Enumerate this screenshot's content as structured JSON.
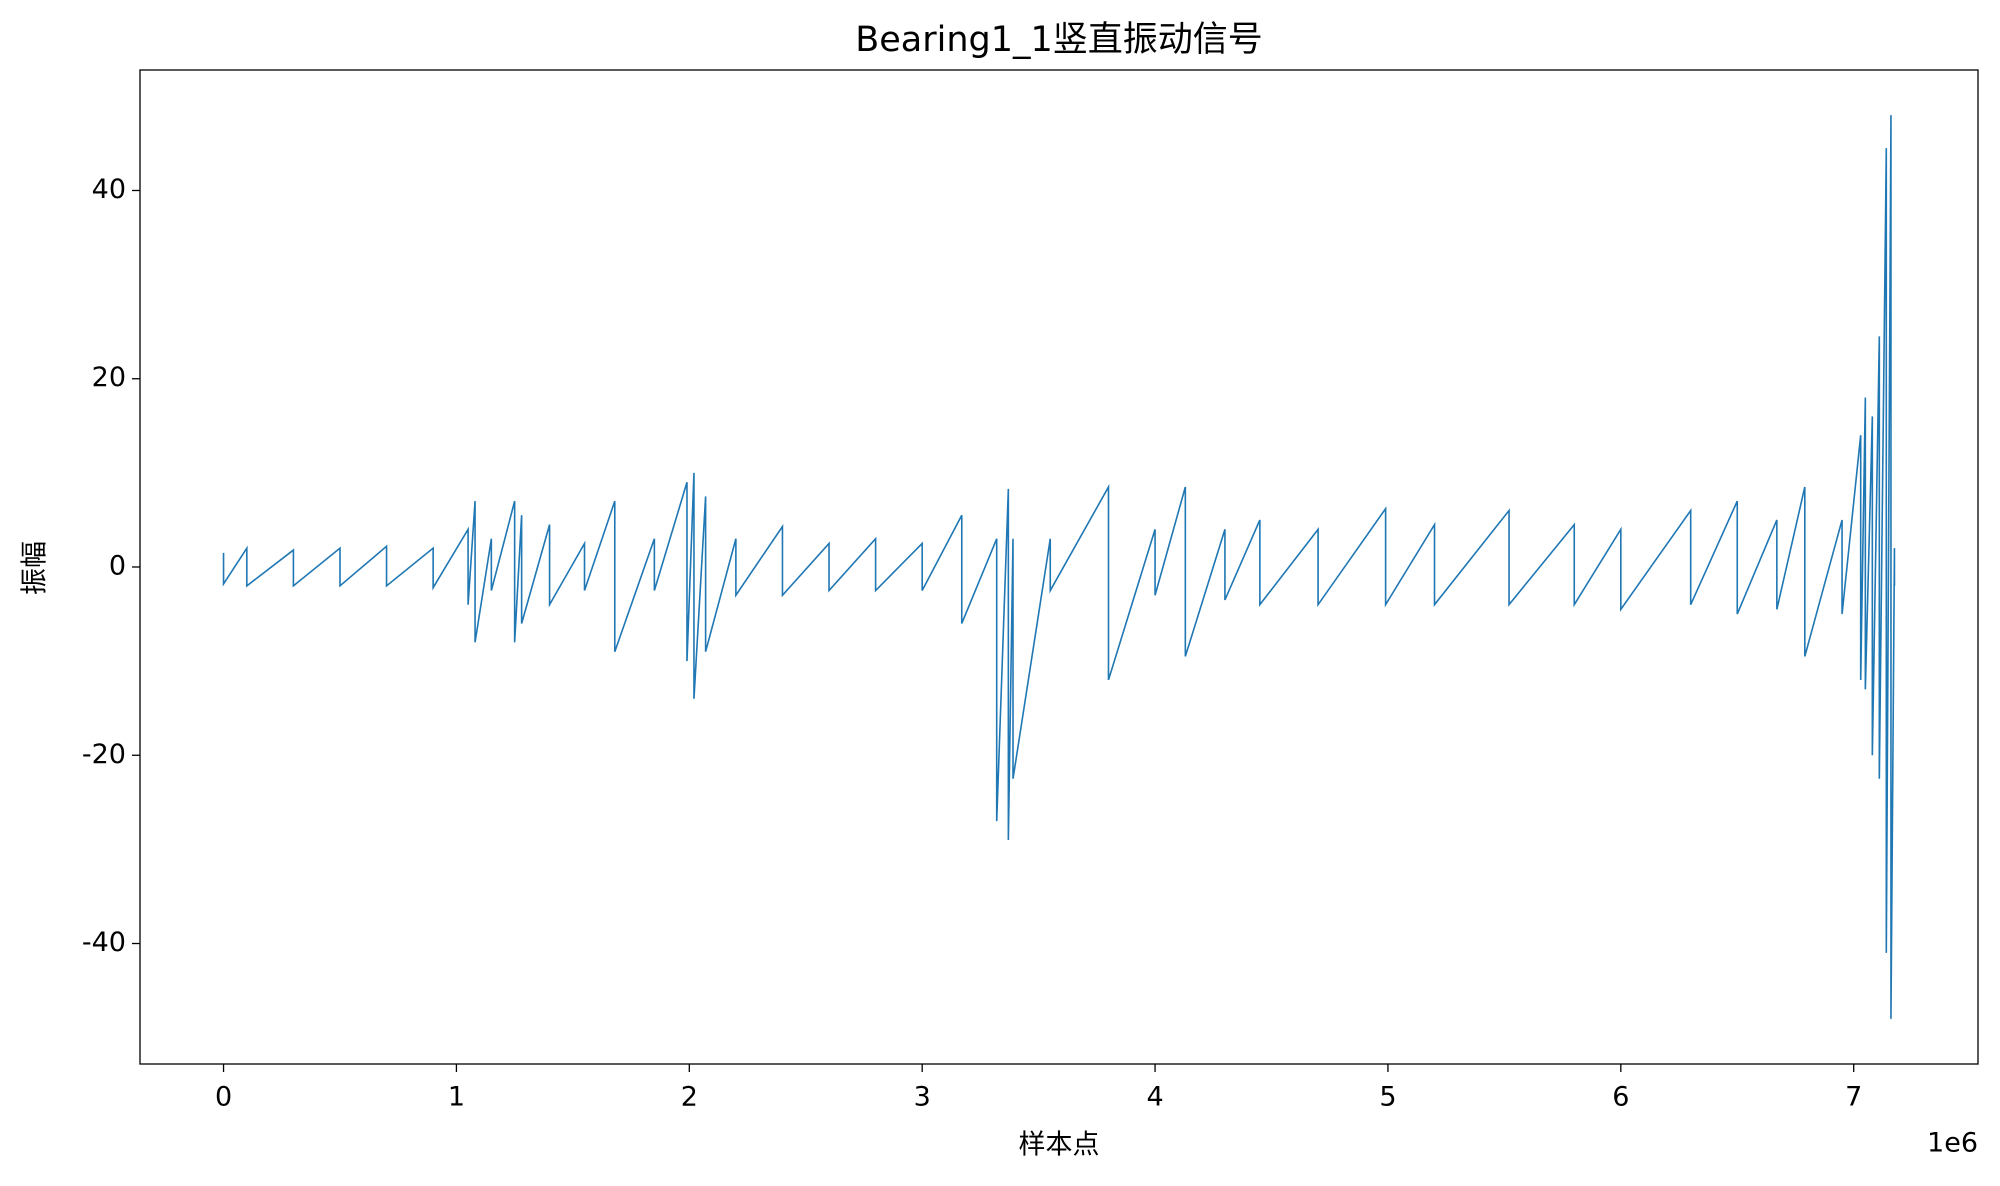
{
  "chart_data": {
    "type": "line",
    "title": "Bearing1_1竖直振动信号",
    "xlabel": "样本点",
    "ylabel": "振幅",
    "x_offset_label": "1e6",
    "color": "#1f77b4",
    "xlim": [
      -358750,
      7533750
    ],
    "ylim": [
      -52.8,
      52.8
    ],
    "xticks": [
      0,
      {
        "value": 1000000,
        "label": "1"
      },
      {
        "value": 2000000,
        "label": "2"
      },
      {
        "value": 3000000,
        "label": "3"
      },
      {
        "value": 4000000,
        "label": "4"
      },
      {
        "value": 5000000,
        "label": "5"
      },
      {
        "value": 6000000,
        "label": "6"
      },
      {
        "value": 7000000,
        "label": "7"
      }
    ],
    "yticks": [
      -40,
      -20,
      0,
      20,
      40
    ],
    "x": [
      0,
      0,
      100000,
      100000,
      300000,
      300000,
      500000,
      500000,
      700000,
      700000,
      900000,
      900000,
      1050000,
      1050000,
      1080000,
      1080000,
      1150000,
      1150000,
      1250000,
      1250000,
      1280000,
      1280000,
      1400000,
      1400000,
      1550000,
      1550000,
      1680000,
      1680000,
      1850000,
      1850000,
      1990000,
      1990000,
      2020000,
      2020000,
      2070000,
      2070000,
      2200000,
      2200000,
      2400000,
      2400000,
      2600000,
      2600000,
      2800000,
      2800000,
      3000000,
      3000000,
      3170000,
      3170000,
      3320000,
      3320000,
      3370000,
      3370000,
      3390000,
      3390000,
      3550000,
      3550000,
      3800000,
      3800000,
      4000000,
      4000000,
      4130000,
      4130000,
      4300000,
      4300000,
      4450000,
      4450000,
      4700000,
      4700000,
      4990000,
      4990000,
      5200000,
      5200000,
      5520000,
      5520000,
      5800000,
      5800000,
      6000000,
      6000000,
      6300000,
      6300000,
      6500000,
      6500000,
      6670000,
      6670000,
      6790000,
      6790000,
      6950000,
      6950000,
      7030000,
      7030000,
      7050000,
      7050000,
      7080000,
      7080000,
      7110000,
      7110000,
      7140000,
      7140000,
      7160000,
      7160000,
      7175000,
      7175000
    ],
    "values": [
      1.5,
      -1.8,
      2,
      -2,
      1.8,
      -2,
      2,
      -2,
      2.2,
      -2,
      2,
      -2.2,
      4,
      -4,
      7,
      -8,
      3,
      -2.5,
      7,
      -8,
      5.5,
      -6,
      4.5,
      -4,
      2.5,
      -2.5,
      7,
      -9,
      3,
      -2.5,
      9,
      -10,
      10,
      -14,
      7.5,
      -9,
      3,
      -3,
      4.3,
      -3,
      2.5,
      -2.5,
      3,
      -2.5,
      2.5,
      -2.5,
      5.5,
      -6,
      3,
      -27,
      8.3,
      -29,
      3,
      -22.5,
      3,
      -2.5,
      8.5,
      -12,
      4,
      -3,
      8.5,
      -9.5,
      4,
      -3.5,
      5,
      -4,
      4,
      -4,
      6.2,
      -4,
      4.5,
      -4,
      6,
      -4,
      4.5,
      -4,
      4,
      -4.5,
      6,
      -4,
      7,
      -5,
      5,
      -4.5,
      8.5,
      -9.5,
      5,
      -5,
      14,
      -12,
      18,
      -13,
      16,
      -20,
      24.5,
      -22.5,
      44.5,
      -41,
      48,
      -48,
      2,
      -2
    ]
  }
}
